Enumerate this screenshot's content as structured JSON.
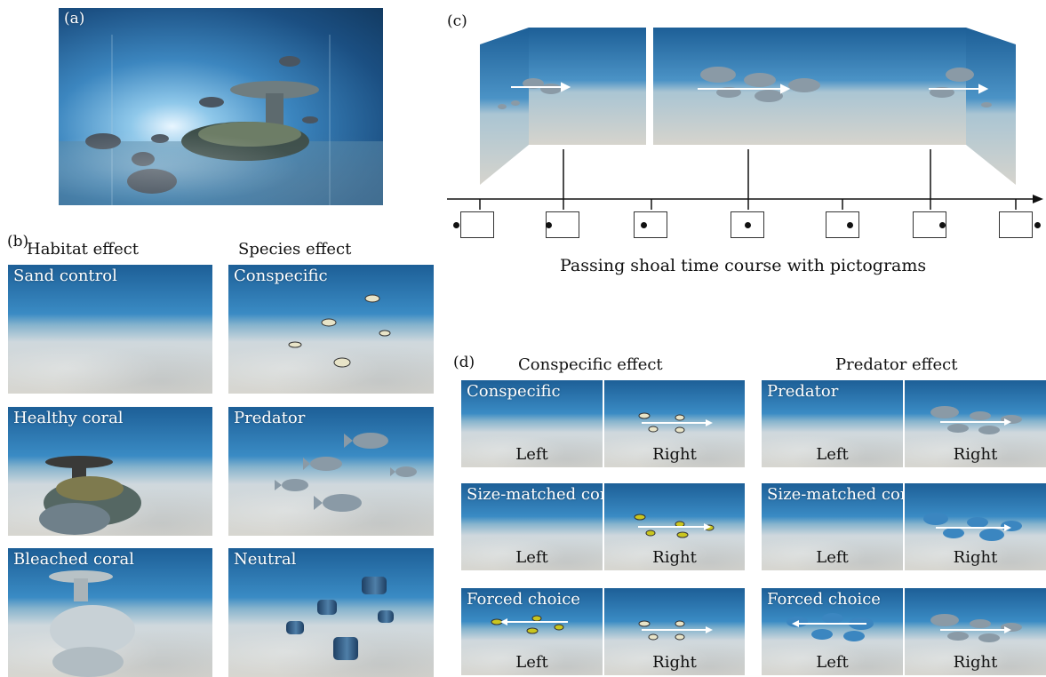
{
  "panels": {
    "a": {
      "letter": "(a)"
    },
    "b": {
      "letter": "(b)",
      "habitat_title": "Habitat effect",
      "species_title": "Species effect",
      "habitat": [
        "Sand control",
        "Healthy coral",
        "Bleached coral"
      ],
      "species": [
        "Conspecific",
        "Predator",
        "Neutral"
      ]
    },
    "c": {
      "letter": "(c)",
      "caption": "Passing shoal time course with pictograms"
    },
    "d": {
      "letter": "(d)",
      "conspecific_title": "Conspecific effect",
      "predator_title": "Predator effect",
      "rows": [
        "Conspecific",
        "Size-matched control",
        "Forced choice"
      ],
      "predator_rows": [
        "Predator",
        "Size-matched control",
        "Forced choice"
      ],
      "left_label": "Left",
      "right_label": "Right"
    }
  },
  "colors": {
    "water_deep": "#1d5f97",
    "sand": "#d7d6d0",
    "arrow": "#ffffff",
    "axis": "#111111"
  },
  "icons": [
    "eye-icon",
    "fish-icon",
    "coral-icon",
    "arrow-icon"
  ]
}
